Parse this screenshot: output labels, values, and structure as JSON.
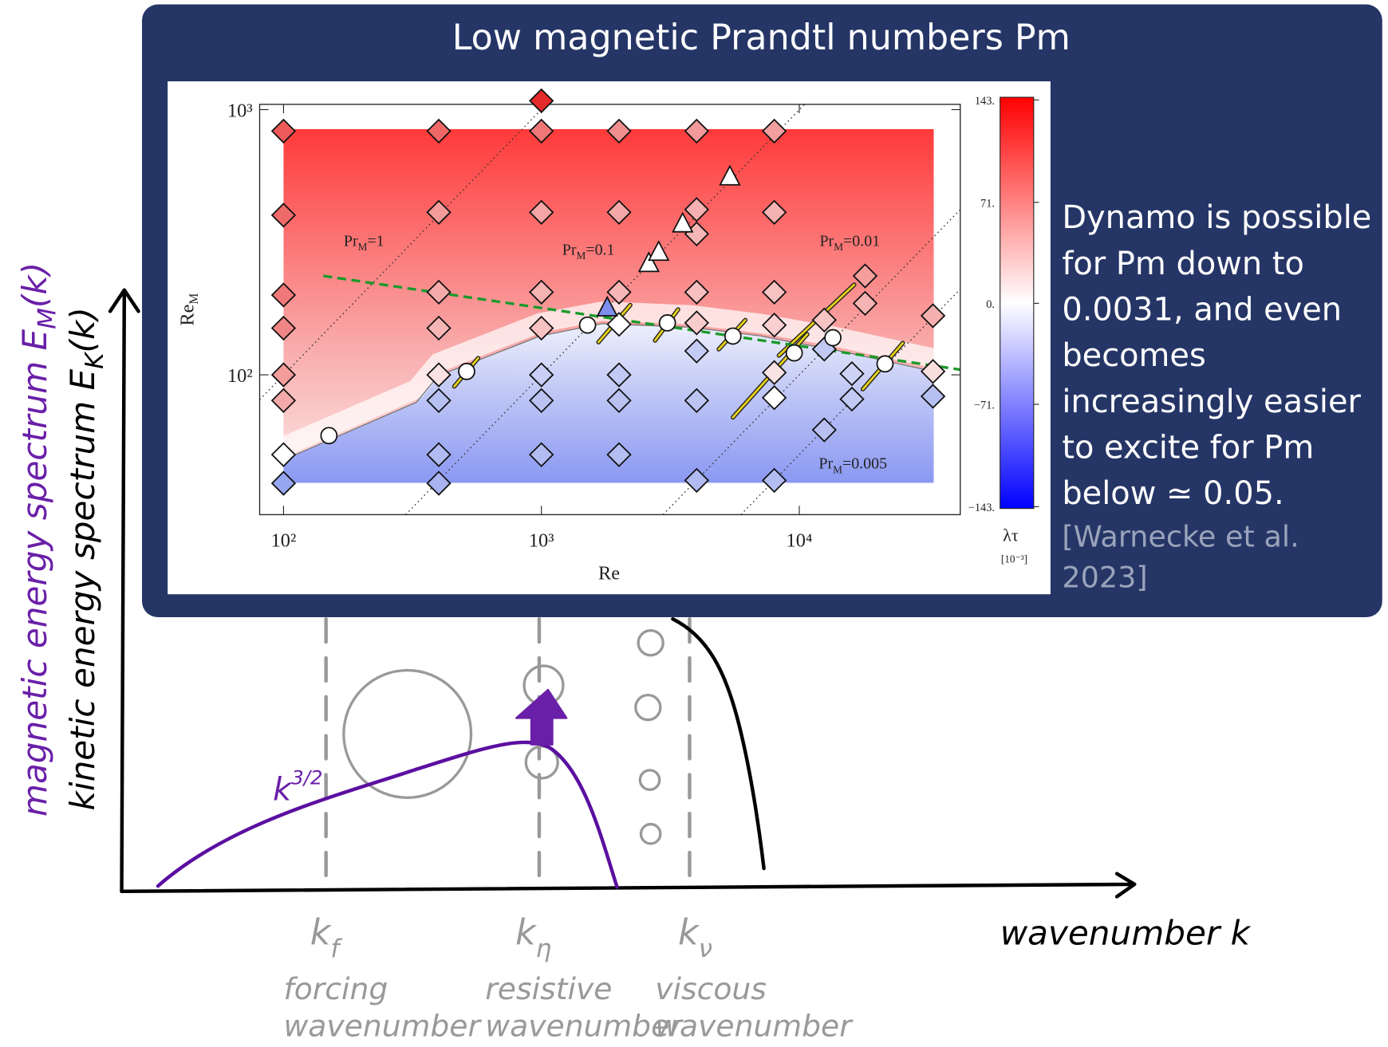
{
  "title": "Low magnetic Prandtl numbers Pm",
  "caption": {
    "lines": [
      "Dynamo is possible",
      "for Pm down to",
      "0.0031, and even",
      "becomes",
      "increasingly easier",
      "to excite for Pm",
      "below ≃ 0.05."
    ],
    "citation": [
      "[Warnecke et al.",
      "2023]"
    ]
  },
  "chart_data": {
    "type": "scatter",
    "x_label": "Re",
    "y_label": {
      "base": "Re",
      "sub": "M"
    },
    "xlog": true,
    "ylog": true,
    "xlim": [
      80.8,
      42100
    ],
    "ylim": [
      29.7,
      1047
    ],
    "xticks": [
      {
        "value": 100,
        "label": "10²"
      },
      {
        "value": 1000,
        "label": "10³"
      },
      {
        "value": 10000,
        "label": "10⁴"
      }
    ],
    "yticks": [
      {
        "value": 100,
        "label": "10²"
      },
      {
        "value": 1000,
        "label": "10³"
      }
    ],
    "series": [
      {
        "marker": "diamond",
        "x": [
          100,
          100,
          100,
          100,
          100,
          100,
          100,
          100,
          400,
          400,
          400,
          400,
          400,
          400,
          400,
          400,
          1000,
          1000,
          1000,
          1000,
          1000,
          1000,
          1000,
          1000,
          2000,
          2000,
          2000,
          2000,
          2000,
          2000,
          2000,
          4000,
          4000,
          4000,
          4000,
          4000,
          4000,
          4000,
          4000,
          8000,
          8000,
          8000,
          8000,
          8000,
          8000,
          8000,
          12500,
          12500,
          12500,
          16000,
          16000,
          18000,
          18000,
          33000,
          33000,
          33000
        ],
        "values": [
          830,
          400,
          200,
          150,
          100,
          80,
          50,
          39,
          830,
          410,
          205,
          150,
          100,
          80,
          50,
          39,
          1080,
          830,
          410,
          205,
          150,
          100,
          80,
          50,
          830,
          410,
          205,
          155,
          100,
          80,
          50,
          830,
          420,
          340,
          205,
          157,
          123,
          80,
          40,
          830,
          410,
          205,
          154,
          102,
          82,
          40,
          161,
          125,
          62,
          101,
          81,
          236,
          186,
          167,
          103,
          83
        ],
        "colors": [
          "#ee5a5a",
          "#ef6a6a",
          "#f07878",
          "#f08585",
          "#f39c9c",
          "#f4aaaa",
          "#ffffff",
          "#97a6f0",
          "#ef6868",
          "#f49c9c",
          "#f6abab",
          "#f7b6b6",
          "#fbe2e2",
          "#b7c0f2",
          "#b1baf1",
          "#a9b3f0",
          "#e52a2a",
          "#ef7777",
          "#f5a5a5",
          "#f7b2b2",
          "#f8c2c2",
          "#c8cef5",
          "#bbc3f3",
          "#b3bcf1",
          "#f18f8f",
          "#f5a8a8",
          "#f7b5b5",
          "#ffffff",
          "#c2c9f4",
          "#bac2f2",
          "#b5bef2",
          "#f29a9a",
          "#f6b0b0",
          "#f6b6b6",
          "#f8c0c0",
          "#f9cccc",
          "#c4cbf4",
          "#bcc4f3",
          "#b2bbf1",
          "#f39f9f",
          "#f6b2b2",
          "#f8c2c2",
          "#f9cfcf",
          "#f9e2e2",
          "#ffffff",
          "#b4bdf2",
          "#f8c4c4",
          "#c0c8f3",
          "#b8c1f2",
          "#cdd3f5",
          "#c2c9f4",
          "#f49e9e",
          "#f7b4b4",
          "#f6b0b0",
          "#f9dede",
          "#b7c0f2"
        ]
      },
      {
        "marker": "circle",
        "color": "#ffffff",
        "x": [
          150,
          513,
          1510,
          3080,
          5530,
          9560,
          13500,
          21500
        ],
        "values": [
          59,
          103,
          154,
          157,
          140,
          121,
          138,
          110
        ]
      },
      {
        "marker": "triangle",
        "x": [
          1800,
          2610,
          2850,
          3530,
          5380
        ],
        "values": [
          179,
          263,
          290,
          371,
          558
        ],
        "colors": [
          "#7f8ff0",
          "#ffffff",
          "#ffffff",
          "#ffffff",
          "#ffffff"
        ]
      }
    ],
    "annotations": [
      {
        "base": "Pr",
        "sub": "M",
        "rest": "=1"
      },
      {
        "base": "Pr",
        "sub": "M",
        "rest": "=0.1"
      },
      {
        "base": "Pr",
        "sub": "M",
        "rest": "=0.01"
      },
      {
        "base": "Pr",
        "sub": "M",
        "rest": "=0.005"
      }
    ],
    "colorbar": {
      "label": "λτ",
      "unit": "[10⁻³]",
      "lim": [
        -143,
        143
      ],
      "ticks": [
        {
          "value": 143,
          "label": "143."
        },
        {
          "value": 71,
          "label": "71."
        },
        {
          "value": 0,
          "label": "0."
        },
        {
          "value": -71,
          "label": "−71."
        },
        {
          "value": -143,
          "label": "−143."
        }
      ],
      "colors": [
        "#0000ff",
        "#ffffff",
        "#ff0000"
      ]
    }
  },
  "sketch": {
    "y_label_magnetic": {
      "base": "magnetic energy spectrum E",
      "sub": "M",
      "rest": "(k)"
    },
    "y_label_kinetic": {
      "base": "kinetic energy spectrum E",
      "sub": "K",
      "rest": "(k)"
    },
    "x_label": "wavenumber k",
    "slope": {
      "base": "k",
      "sup": "3/2"
    },
    "markers": [
      {
        "symbol": {
          "base": "k",
          "sub": "f"
        },
        "lines": [
          "forcing",
          "wavenumber"
        ]
      },
      {
        "symbol": {
          "base": "k",
          "sub": "η"
        },
        "lines": [
          "resistive",
          "wavenumber"
        ]
      },
      {
        "symbol": {
          "base": "k",
          "sub": "ν"
        },
        "lines": [
          "viscous",
          "wavenumber"
        ]
      }
    ]
  }
}
